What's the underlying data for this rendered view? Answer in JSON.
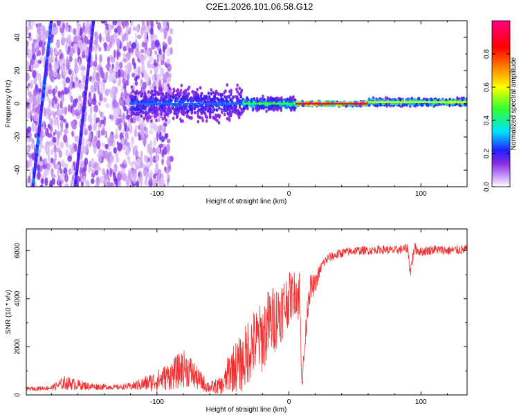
{
  "title": "C2E1.2026.101.06.58.G12",
  "colors": {
    "snr_line": "#f03030",
    "axis": "#000000",
    "background": "#ffffff"
  },
  "chart_data": [
    {
      "type": "heatmap",
      "name": "spectrogram",
      "xlabel": "Height of straight line (km)",
      "ylabel": "Frequency (Hz)",
      "xlim": [
        -199,
        135
      ],
      "ylim": [
        -50,
        50
      ],
      "xticks": [
        -100,
        0,
        100
      ],
      "xtick_labels": [
        "-100",
        "0",
        "100"
      ],
      "yticks": [
        -40,
        -20,
        0,
        20,
        40
      ],
      "ytick_labels": [
        "-40",
        "-20",
        "0",
        "20",
        "40"
      ],
      "colorbar": {
        "label": "Normalized spectral amplitude",
        "range": [
          0,
          1
        ],
        "ticks": [
          0.0,
          0.2,
          0.4,
          0.6,
          0.8
        ],
        "tick_labels": [
          "0.0",
          "0.2",
          "0.4",
          "0.6",
          "0.8"
        ],
        "colormap": [
          "#ffffff",
          "#8a2be2",
          "#2020ff",
          "#00e0ff",
          "#30ff30",
          "#ffff00",
          "#ff8000",
          "#ff0000",
          "#ff0080"
        ]
      },
      "bands": [
        {
          "x_start": -120,
          "x_end": -35,
          "center_hz": 0,
          "half_width_hz": 14,
          "amplitude": 0.3
        },
        {
          "x_start": -35,
          "x_end": 5,
          "center_hz": 0,
          "half_width_hz": 5,
          "amplitude": 0.5
        },
        {
          "x_start": 5,
          "x_end": 60,
          "center_hz": 0,
          "half_width_hz": 1.5,
          "amplitude": 0.95
        },
        {
          "x_start": 60,
          "x_end": 135,
          "center_hz": 1,
          "half_width_hz": 3,
          "amplitude": 0.6
        }
      ],
      "streaks": [
        {
          "x1": -194,
          "y1": -50,
          "x2": -180,
          "y2": 50,
          "amplitude": 0.25
        },
        {
          "x1": -162,
          "y1": -50,
          "x2": -148,
          "y2": 50,
          "amplitude": 0.2
        }
      ]
    },
    {
      "type": "line",
      "name": "snr",
      "xlabel": "Height of straight line (km)",
      "ylabel": "SNR (10 * v/v)",
      "xlim": [
        -199,
        135
      ],
      "ylim": [
        0,
        6900
      ],
      "xticks": [
        -100,
        0,
        100
      ],
      "xtick_labels": [
        "-100",
        "0",
        "100"
      ],
      "yticks": [
        0,
        2000,
        4000,
        6000
      ],
      "ytick_labels": [
        "0",
        "2000",
        "4000",
        "6000"
      ],
      "series": [
        {
          "name": "SNR",
          "x": [
            -199,
            -180,
            -170,
            -150,
            -130,
            -120,
            -110,
            -100,
            -90,
            -80,
            -75,
            -70,
            -60,
            -50,
            -45,
            -40,
            -35,
            -30,
            -25,
            -20,
            -15,
            -10,
            -5,
            0,
            5,
            8,
            10,
            15,
            20,
            25,
            30,
            40,
            50,
            60,
            70,
            80,
            90,
            92,
            95,
            100,
            110,
            120,
            135
          ],
          "y": [
            250,
            300,
            500,
            350,
            320,
            350,
            450,
            600,
            800,
            1100,
            1000,
            700,
            300,
            400,
            1000,
            1200,
            1300,
            2000,
            2200,
            2400,
            3000,
            3200,
            3600,
            4000,
            4300,
            4100,
            500,
            4300,
            4600,
            5400,
            5700,
            5900,
            6000,
            6000,
            6050,
            6000,
            6100,
            5100,
            6100,
            5950,
            6050,
            6000,
            6050
          ],
          "noise": [
            80,
            100,
            300,
            150,
            100,
            150,
            300,
            450,
            600,
            800,
            700,
            500,
            250,
            400,
            900,
            1100,
            1200,
            1500,
            1400,
            1500,
            1500,
            1400,
            1300,
            1100,
            900,
            1300,
            400,
            700,
            400,
            250,
            200,
            200,
            180,
            180,
            180,
            180,
            200,
            300,
            250,
            200,
            200,
            200,
            200
          ]
        }
      ]
    }
  ]
}
